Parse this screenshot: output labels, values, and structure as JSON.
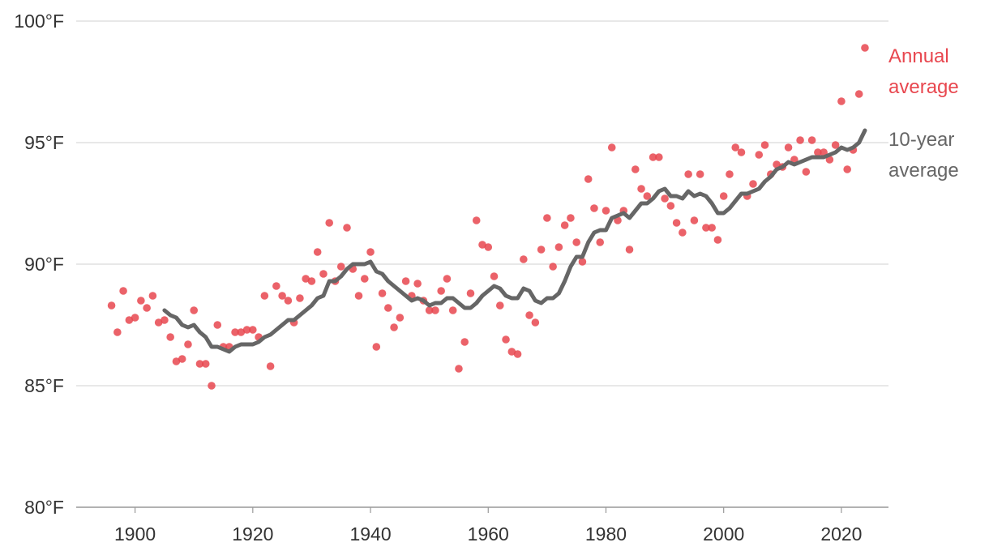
{
  "chart_data": {
    "type": "scatter",
    "title": "",
    "xlabel": "",
    "ylabel": "",
    "xlim": [
      1890,
      2028
    ],
    "ylim": [
      80,
      100
    ],
    "x_ticks": [
      1900,
      1920,
      1940,
      1960,
      1980,
      2000,
      2020
    ],
    "x_tick_labels": [
      "1900",
      "1920",
      "1940",
      "1960",
      "1980",
      "2000",
      "2020"
    ],
    "y_ticks": [
      80,
      85,
      90,
      95,
      100
    ],
    "y_tick_labels": [
      "80°F",
      "85°F",
      "90°F",
      "95°F",
      "100°F"
    ],
    "grid": "horizontal",
    "legend_placement": "right",
    "colors": {
      "annual": "#e8474f",
      "ten_year": "#666666",
      "grid": "#d9d9d9",
      "axis": "#999999"
    },
    "series": [
      {
        "name": "Annual average",
        "type": "scatter",
        "legend_lines": [
          "Annual",
          "average"
        ],
        "x": [
          1896,
          1897,
          1898,
          1899,
          1900,
          1901,
          1902,
          1903,
          1904,
          1905,
          1906,
          1907,
          1908,
          1909,
          1910,
          1911,
          1912,
          1913,
          1914,
          1915,
          1916,
          1917,
          1918,
          1919,
          1920,
          1921,
          1922,
          1923,
          1924,
          1925,
          1926,
          1927,
          1928,
          1929,
          1930,
          1931,
          1932,
          1933,
          1934,
          1935,
          1936,
          1937,
          1938,
          1939,
          1940,
          1941,
          1942,
          1943,
          1944,
          1945,
          1946,
          1947,
          1948,
          1949,
          1950,
          1951,
          1952,
          1953,
          1954,
          1955,
          1956,
          1957,
          1958,
          1959,
          1960,
          1961,
          1962,
          1963,
          1964,
          1965,
          1966,
          1967,
          1968,
          1969,
          1970,
          1971,
          1972,
          1973,
          1974,
          1975,
          1976,
          1977,
          1978,
          1979,
          1980,
          1981,
          1982,
          1983,
          1984,
          1985,
          1986,
          1987,
          1988,
          1989,
          1990,
          1991,
          1992,
          1993,
          1994,
          1995,
          1996,
          1997,
          1998,
          1999,
          2000,
          2001,
          2002,
          2003,
          2004,
          2005,
          2006,
          2007,
          2008,
          2009,
          2010,
          2011,
          2012,
          2013,
          2014,
          2015,
          2016,
          2017,
          2018,
          2019,
          2020,
          2021,
          2022,
          2023,
          2024
        ],
        "y": [
          88.3,
          87.2,
          88.9,
          87.7,
          87.8,
          88.5,
          88.2,
          88.7,
          87.6,
          87.7,
          87.0,
          86.0,
          86.1,
          86.7,
          88.1,
          85.9,
          85.9,
          85.0,
          87.5,
          86.6,
          86.6,
          87.2,
          87.2,
          87.3,
          87.3,
          87.0,
          88.7,
          85.8,
          89.1,
          88.7,
          88.5,
          87.6,
          88.6,
          89.4,
          89.3,
          90.5,
          89.6,
          91.7,
          89.3,
          89.9,
          91.5,
          89.8,
          88.7,
          89.4,
          90.5,
          86.6,
          88.8,
          88.2,
          87.4,
          87.8,
          89.3,
          88.7,
          89.2,
          88.5,
          88.1,
          88.1,
          88.9,
          89.4,
          88.1,
          85.7,
          86.8,
          88.8,
          91.8,
          90.8,
          90.7,
          89.5,
          88.3,
          86.9,
          86.4,
          86.3,
          90.2,
          87.9,
          87.6,
          90.6,
          91.9,
          89.9,
          90.7,
          91.6,
          91.9,
          90.9,
          90.1,
          93.5,
          92.3,
          90.9,
          92.2,
          94.8,
          91.8,
          92.2,
          90.6,
          93.9,
          93.1,
          92.8,
          94.4,
          94.4,
          92.7,
          92.4,
          91.7,
          91.3,
          93.7,
          91.8,
          93.7,
          91.5,
          91.5,
          91.0,
          92.8,
          93.7,
          94.8,
          94.6,
          92.8,
          93.3,
          94.5,
          94.9,
          93.7,
          94.1,
          94.0,
          94.8,
          94.3,
          95.1,
          93.8,
          95.1,
          94.6,
          94.6,
          94.3,
          94.9,
          96.7,
          93.9,
          94.7,
          97.0,
          98.9
        ]
      },
      {
        "name": "10-year average",
        "type": "line",
        "legend_lines": [
          "10-year",
          "average"
        ],
        "x": [
          1905,
          1906,
          1907,
          1908,
          1909,
          1910,
          1911,
          1912,
          1913,
          1914,
          1915,
          1916,
          1917,
          1918,
          1919,
          1920,
          1921,
          1922,
          1923,
          1924,
          1925,
          1926,
          1927,
          1928,
          1929,
          1930,
          1931,
          1932,
          1933,
          1934,
          1935,
          1936,
          1937,
          1938,
          1939,
          1940,
          1941,
          1942,
          1943,
          1944,
          1945,
          1946,
          1947,
          1948,
          1949,
          1950,
          1951,
          1952,
          1953,
          1954,
          1955,
          1956,
          1957,
          1958,
          1959,
          1960,
          1961,
          1962,
          1963,
          1964,
          1965,
          1966,
          1967,
          1968,
          1969,
          1970,
          1971,
          1972,
          1973,
          1974,
          1975,
          1976,
          1977,
          1978,
          1979,
          1980,
          1981,
          1982,
          1983,
          1984,
          1985,
          1986,
          1987,
          1988,
          1989,
          1990,
          1991,
          1992,
          1993,
          1994,
          1995,
          1996,
          1997,
          1998,
          1999,
          2000,
          2001,
          2002,
          2003,
          2004,
          2005,
          2006,
          2007,
          2008,
          2009,
          2010,
          2011,
          2012,
          2013,
          2014,
          2015,
          2016,
          2017,
          2018,
          2019,
          2020,
          2021,
          2022,
          2023,
          2024
        ],
        "y": [
          88.1,
          87.9,
          87.8,
          87.5,
          87.4,
          87.5,
          87.2,
          87.0,
          86.6,
          86.6,
          86.5,
          86.4,
          86.6,
          86.7,
          86.7,
          86.7,
          86.8,
          87.0,
          87.1,
          87.3,
          87.5,
          87.7,
          87.7,
          87.9,
          88.1,
          88.3,
          88.6,
          88.7,
          89.3,
          89.3,
          89.5,
          89.8,
          90.0,
          90.0,
          90.0,
          90.1,
          89.7,
          89.6,
          89.3,
          89.1,
          88.9,
          88.7,
          88.5,
          88.6,
          88.5,
          88.3,
          88.4,
          88.4,
          88.6,
          88.6,
          88.4,
          88.2,
          88.2,
          88.4,
          88.7,
          88.9,
          89.1,
          89.0,
          88.7,
          88.6,
          88.6,
          89.0,
          88.9,
          88.5,
          88.4,
          88.6,
          88.6,
          88.8,
          89.3,
          89.9,
          90.3,
          90.3,
          90.9,
          91.3,
          91.4,
          91.4,
          91.9,
          92.0,
          92.1,
          91.9,
          92.2,
          92.5,
          92.5,
          92.7,
          93.0,
          93.1,
          92.8,
          92.8,
          92.7,
          93.0,
          92.8,
          92.9,
          92.8,
          92.5,
          92.1,
          92.1,
          92.3,
          92.6,
          92.9,
          92.9,
          93.0,
          93.1,
          93.4,
          93.6,
          93.9,
          94.0,
          94.2,
          94.1,
          94.2,
          94.3,
          94.4,
          94.4,
          94.4,
          94.5,
          94.6,
          94.8,
          94.7,
          94.8,
          95.0,
          95.5
        ]
      }
    ]
  }
}
